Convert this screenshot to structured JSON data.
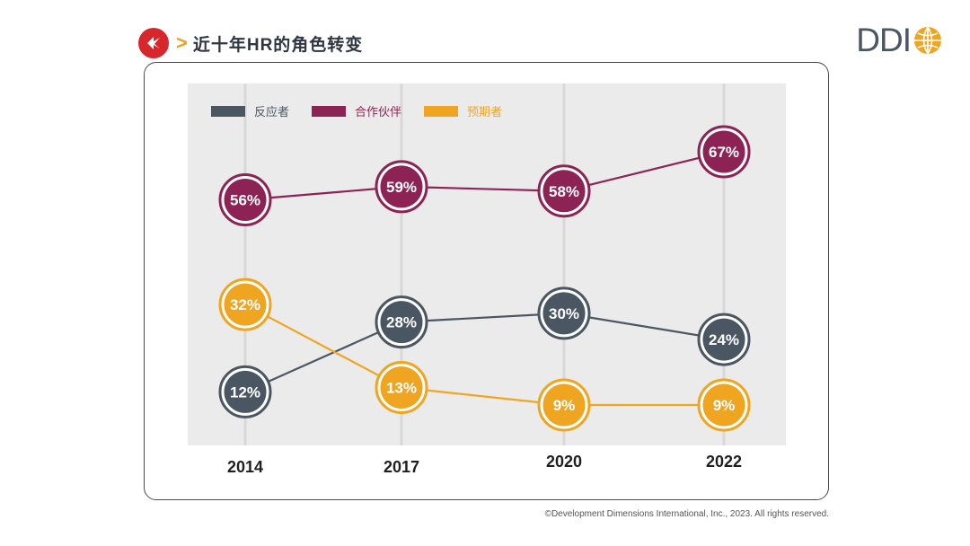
{
  "header": {
    "title": "近十年HR的角色转变"
  },
  "brand": {
    "logo_text": "DDI"
  },
  "footer": {
    "copyright": "©Development Dimensions International, Inc., 2023. All rights reserved."
  },
  "colors": {
    "panel_bg": "#ebebeb",
    "reactor": "#4b5663",
    "partner": "#8c2354",
    "anticipator": "#f0a520",
    "accent_red": "#d7262c"
  },
  "chart_data": {
    "type": "line",
    "title": "",
    "xlabel": "",
    "ylabel": "",
    "ylim": [
      0,
      70
    ],
    "categories": [
      "2014",
      "2017",
      "2020",
      "2022"
    ],
    "legend_position": "top-left",
    "grid": true,
    "series": [
      {
        "name": "反应者",
        "color": "#4b5663",
        "values": [
          12,
          28,
          30,
          24
        ],
        "labels": [
          "12%",
          "28%",
          "30%",
          "24%"
        ]
      },
      {
        "name": "合作伙伴",
        "color": "#8c2354",
        "values": [
          56,
          59,
          58,
          67
        ],
        "labels": [
          "56%",
          "59%",
          "58%",
          "67%"
        ]
      },
      {
        "name": "预期者",
        "color": "#f0a520",
        "values": [
          32,
          13,
          9,
          9
        ],
        "labels": [
          "32%",
          "13%",
          "9%",
          "9%"
        ]
      }
    ]
  }
}
